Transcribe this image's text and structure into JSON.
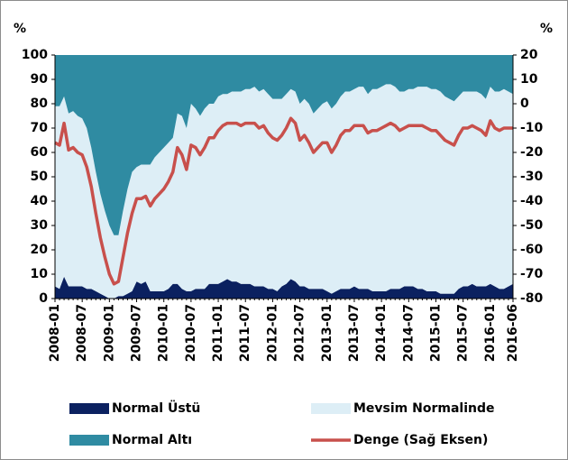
{
  "chart_data": {
    "type": "stacked-area-line",
    "y_label": "%",
    "y2_label": "%",
    "categories": [
      "2008-01",
      null,
      null,
      null,
      null,
      null,
      "2008-07",
      null,
      null,
      null,
      null,
      null,
      "2009-01",
      null,
      null,
      null,
      null,
      null,
      "2009-07",
      null,
      null,
      null,
      null,
      null,
      "2010-01",
      null,
      null,
      null,
      null,
      null,
      "2010-07",
      null,
      null,
      null,
      null,
      null,
      "2011-01",
      null,
      null,
      null,
      null,
      null,
      "2011-07",
      null,
      null,
      null,
      null,
      null,
      "2012-01",
      null,
      null,
      null,
      null,
      null,
      "2012-07",
      null,
      null,
      null,
      null,
      null,
      "2013-01",
      null,
      null,
      null,
      null,
      null,
      "2013-07",
      null,
      null,
      null,
      null,
      null,
      "2014-01",
      null,
      null,
      null,
      null,
      null,
      "2014-07",
      null,
      null,
      null,
      null,
      null,
      "2015-01",
      null,
      null,
      null,
      null,
      null,
      "2015-07",
      null,
      null,
      null,
      null,
      null,
      "2016-01",
      null,
      null,
      null,
      null,
      "2016-06"
    ],
    "series": [
      {
        "name": "Normal Üstü",
        "color": "#0b2160",
        "values": [
          5,
          4,
          9,
          5,
          5,
          5,
          5,
          4,
          4,
          3,
          2,
          1,
          0,
          0,
          1,
          1,
          2,
          3,
          7,
          6,
          7,
          3,
          3,
          3,
          3,
          4,
          6,
          6,
          4,
          3,
          3,
          4,
          4,
          4,
          6,
          6,
          6,
          7,
          8,
          7,
          7,
          6,
          6,
          6,
          5,
          5,
          5,
          4,
          4,
          3,
          5,
          6,
          8,
          7,
          5,
          5,
          4,
          4,
          4,
          4,
          3,
          2,
          3,
          4,
          4,
          4,
          5,
          4,
          4,
          4,
          3,
          3,
          3,
          3,
          4,
          4,
          4,
          5,
          5,
          5,
          4,
          4,
          3,
          3,
          3,
          2,
          2,
          2,
          2,
          4,
          5,
          5,
          6,
          5,
          5,
          5,
          6,
          5,
          4,
          4,
          5,
          6
        ]
      },
      {
        "name": "Mevsim Normalinde",
        "color": "#ddeef6",
        "values": [
          74,
          75,
          74,
          71,
          72,
          70,
          69,
          66,
          58,
          49,
          41,
          35,
          30,
          26,
          25,
          35,
          43,
          49,
          47,
          49,
          48,
          52,
          55,
          57,
          59,
          60,
          60,
          70,
          71,
          67,
          77,
          74,
          71,
          74,
          74,
          74,
          77,
          77,
          76,
          78,
          78,
          79,
          80,
          80,
          82,
          80,
          81,
          80,
          78,
          79,
          77,
          78,
          78,
          78,
          75,
          77,
          76,
          72,
          74,
          76,
          78,
          76,
          77,
          79,
          81,
          81,
          81,
          83,
          83,
          80,
          83,
          83,
          84,
          85,
          84,
          83,
          81,
          80,
          81,
          81,
          83,
          83,
          84,
          83,
          83,
          83,
          81,
          80,
          79,
          79,
          80,
          80,
          79,
          80,
          79,
          77,
          81,
          80,
          81,
          82,
          80,
          78
        ]
      },
      {
        "name": "Normal Altı",
        "color": "#2f8ba2",
        "values": [
          21,
          21,
          17,
          24,
          23,
          25,
          26,
          30,
          38,
          48,
          57,
          64,
          70,
          74,
          74,
          64,
          55,
          48,
          46,
          45,
          45,
          45,
          42,
          40,
          38,
          36,
          34,
          24,
          25,
          30,
          20,
          22,
          25,
          22,
          20,
          20,
          17,
          16,
          16,
          15,
          15,
          15,
          14,
          14,
          13,
          15,
          14,
          16,
          18,
          18,
          18,
          16,
          14,
          15,
          20,
          18,
          20,
          24,
          22,
          20,
          19,
          22,
          20,
          17,
          15,
          15,
          14,
          13,
          13,
          16,
          14,
          14,
          13,
          12,
          12,
          13,
          15,
          15,
          14,
          14,
          13,
          13,
          13,
          14,
          14,
          15,
          17,
          18,
          19,
          17,
          15,
          15,
          15,
          15,
          16,
          18,
          13,
          15,
          15,
          14,
          15,
          16
        ]
      },
      {
        "name": "Denge (Sağ Eksen)",
        "color": "#c8504c",
        "axis": "y2",
        "values": [
          -16,
          -17,
          -8,
          -19,
          -18,
          -20,
          -21,
          -26,
          -34,
          -45,
          -55,
          -63,
          -70,
          -74,
          -73,
          -63,
          -53,
          -45,
          -39,
          -39,
          -38,
          -42,
          -39,
          -37,
          -35,
          -32,
          -28,
          -18,
          -21,
          -27,
          -17,
          -18,
          -21,
          -18,
          -14,
          -14,
          -11,
          -9,
          -8,
          -8,
          -8,
          -9,
          -8,
          -8,
          -8,
          -10,
          -9,
          -12,
          -14,
          -15,
          -13,
          -10,
          -6,
          -8,
          -15,
          -13,
          -16,
          -20,
          -18,
          -16,
          -16,
          -20,
          -17,
          -13,
          -11,
          -11,
          -9,
          -9,
          -9,
          -12,
          -11,
          -11,
          -10,
          -9,
          -8,
          -9,
          -11,
          -10,
          -9,
          -9,
          -9,
          -9,
          -10,
          -11,
          -11,
          -13,
          -15,
          -16,
          -17,
          -13,
          -10,
          -10,
          -9,
          -10,
          -11,
          -13,
          -7,
          -10,
          -11,
          -10,
          -10,
          -10
        ]
      }
    ],
    "ylim": [
      0,
      100
    ],
    "yticks": [
      0,
      10,
      20,
      30,
      40,
      50,
      60,
      70,
      80,
      90,
      100
    ],
    "y2lim": [
      -80,
      20
    ],
    "y2ticks": [
      -80,
      -70,
      -60,
      -50,
      -40,
      -30,
      -20,
      -10,
      0,
      10,
      20
    ]
  }
}
